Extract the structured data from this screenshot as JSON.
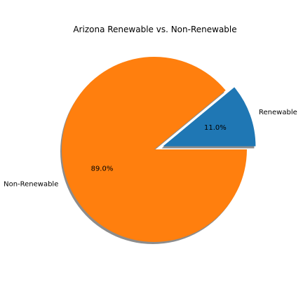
{
  "chart_data": {
    "type": "pie",
    "title": "Arizona Renewable vs. Non-Renewable",
    "slices": [
      {
        "label": "Renewable",
        "value": 11.0,
        "pct_label": "11.0%",
        "color": "#1f77b4",
        "exploded": true
      },
      {
        "label": "Non-Renewable",
        "value": 89.0,
        "pct_label": "89.0%",
        "color": "#ff7f0e",
        "exploded": false
      }
    ],
    "start_angle_deg": 0,
    "shadow": true,
    "legend": "none"
  }
}
